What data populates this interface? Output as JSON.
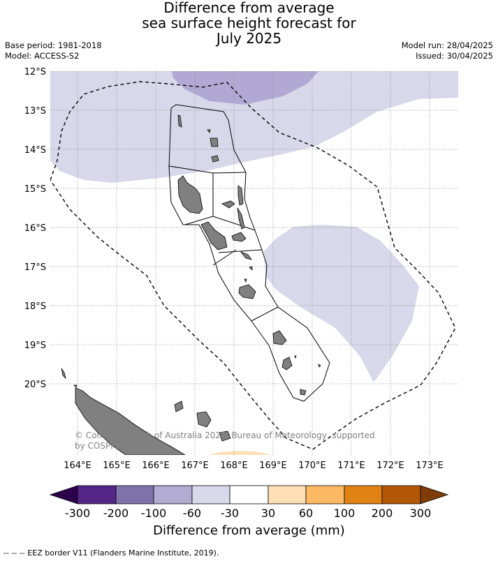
{
  "header": {
    "title_lines": [
      "Difference from average",
      "sea surface height forecast for",
      "July 2025"
    ],
    "base_period": "Base period: 1981-2018",
    "model": "Model: ACCESS-S2",
    "model_run": "Model run: 28/04/2025",
    "issued": "Issued: 30/04/2025"
  },
  "map": {
    "lat_labels": [
      "12°S",
      "13°S",
      "14°S",
      "15°S",
      "16°S",
      "17°S",
      "18°S",
      "19°S",
      "20°S"
    ],
    "lon_labels": [
      "164°E",
      "165°E",
      "166°E",
      "167°E",
      "168°E",
      "169°E",
      "170°E",
      "171°E",
      "172°E",
      "173°E"
    ],
    "credit": "© Commonwealth of Australia 2025, Bureau of Meteorology, supported by COSPPac",
    "colors": {
      "neg_30_60": "#d8d8ea",
      "neg_60_100": "#b1a9d3",
      "pos_30_60": "#fde0b6",
      "land": "#808080"
    }
  },
  "colorbar": {
    "ticks": [
      "-300",
      "-200",
      "-100",
      "-60",
      "-30",
      "30",
      "60",
      "100",
      "200",
      "300"
    ],
    "colors": [
      "#2d004b",
      "#542688",
      "#8073ac",
      "#b2abd2",
      "#d8daeb",
      "#ffffff",
      "#fee0b6",
      "#fdb863",
      "#e08214",
      "#b35806",
      "#7f3b08"
    ],
    "title": "Difference from average (mm)"
  },
  "footer": {
    "legend": "-- -- -- EEZ border V11 (Flanders Marine Institute, 2019)."
  }
}
